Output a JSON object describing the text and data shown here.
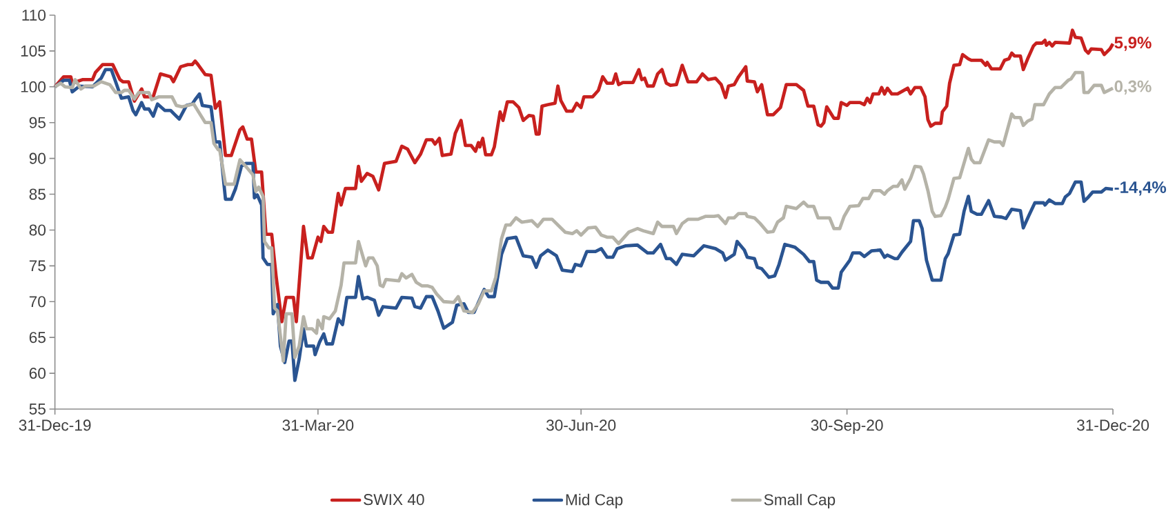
{
  "chart_data": {
    "type": "line",
    "xlim": [
      "2019-12-31",
      "2020-12-31"
    ],
    "xticks": [
      {
        "value": "2019-12-31",
        "label": "31-Dec-19"
      },
      {
        "value": "2020-03-31",
        "label": "31-Mar-20"
      },
      {
        "value": "2020-06-30",
        "label": "30-Jun-20"
      },
      {
        "value": "2020-09-30",
        "label": "30-Sep-20"
      },
      {
        "value": "2020-12-31",
        "label": "31-Dec-20"
      }
    ],
    "ylim": [
      55,
      110
    ],
    "yticks": [
      55,
      60,
      65,
      70,
      75,
      80,
      85,
      90,
      95,
      100,
      105,
      110
    ],
    "grid": false,
    "legend": "bottom",
    "marker": "none",
    "line_style": "solid",
    "series": [
      {
        "name": "SWIX 40",
        "color": "#c8201e",
        "x": [
          "2019-12-31",
          "2020-01-03",
          "2020-01-05T12:00",
          "2020-01-06",
          "2020-01-09T12:00",
          "2020-01-13",
          "2020-01-14",
          "2020-01-16T12:00",
          "2020-01-20",
          "2020-01-22T12:00",
          "2020-01-23T12:00",
          "2020-01-25T12:00",
          "2020-01-27T12:00",
          "2020-01-30",
          "2020-01-31",
          "2020-02-03",
          "2020-02-05T12:00",
          "2020-02-09",
          "2020-02-10",
          "2020-02-12T12:00",
          "2020-02-15",
          "2020-02-16T12:00",
          "2020-02-17T12:00",
          "2020-02-18T12:00",
          "2020-02-21",
          "2020-02-23",
          "2020-02-24T12:00",
          "2020-02-26",
          "2020-02-28",
          "2020-03-01",
          "2020-03-04",
          "2020-03-05",
          "2020-03-06T12:00",
          "2020-03-08",
          "2020-03-09T12:00",
          "2020-03-11T12:00",
          "2020-03-13",
          "2020-03-15",
          "2020-03-16T12:00",
          "2020-03-18T12:00",
          "2020-03-20",
          "2020-03-22T12:00",
          "2020-03-23T12:00",
          "2020-03-26",
          "2020-03-27T12:00",
          "2020-03-29",
          "2020-03-31",
          "2020-04-01",
          "2020-04-02",
          "2020-04-03T12:00",
          "2020-04-05",
          "2020-04-07",
          "2020-04-08",
          "2020-04-09T12:00",
          "2020-04-13",
          "2020-04-14",
          "2020-04-15",
          "2020-04-17",
          "2020-04-19",
          "2020-04-21",
          "2020-04-23",
          "2020-04-27",
          "2020-04-29",
          "2020-05-01",
          "2020-05-03T12:00",
          "2020-05-05T12:00",
          "2020-05-07T12:00",
          "2020-05-09T12:00",
          "2020-05-10T12:00",
          "2020-05-12",
          "2020-05-13",
          "2020-05-16",
          "2020-05-17T12:00",
          "2020-05-19T12:00",
          "2020-05-21",
          "2020-05-23",
          "2020-05-24T12:00",
          "2020-05-25T12:00",
          "2020-05-26",
          "2020-05-27",
          "2020-05-28",
          "2020-05-30",
          "2020-05-31",
          "2020-06-02",
          "2020-06-03",
          "2020-06-04T12:00",
          "2020-06-06T12:00",
          "2020-06-08T12:00",
          "2020-06-10",
          "2020-06-12",
          "2020-06-13T12:00",
          "2020-06-14T12:00",
          "2020-06-15T12:00",
          "2020-06-16T12:00",
          "2020-06-18T12:00",
          "2020-06-21",
          "2020-06-22",
          "2020-06-23",
          "2020-06-25",
          "2020-06-27",
          "2020-06-28T12:00",
          "2020-06-30",
          "2020-07-01",
          "2020-07-04",
          "2020-07-06",
          "2020-07-07T12:00",
          "2020-07-09",
          "2020-07-11",
          "2020-07-12",
          "2020-07-13",
          "2020-07-14T12:00",
          "2020-07-18",
          "2020-07-20",
          "2020-07-21",
          "2020-07-22",
          "2020-07-23",
          "2020-07-25",
          "2020-07-26T12:00",
          "2020-07-28",
          "2020-07-29T12:00",
          "2020-07-31",
          "2020-08-02",
          "2020-08-04",
          "2020-08-06",
          "2020-08-09",
          "2020-08-11",
          "2020-08-13",
          "2020-08-15T12:00",
          "2020-08-17T12:00",
          "2020-08-19",
          "2020-08-20",
          "2020-08-22",
          "2020-08-23T12:00",
          "2020-08-26",
          "2020-08-26T12:00",
          "2020-08-29",
          "2020-08-30",
          "2020-08-31T12:00",
          "2020-09-02T12:00",
          "2020-09-04T12:00",
          "2020-09-07",
          "2020-09-09",
          "2020-09-12T12:00",
          "2020-09-15",
          "2020-09-16T12:00",
          "2020-09-18T12:00",
          "2020-09-20",
          "2020-09-21",
          "2020-09-22",
          "2020-09-23",
          "2020-09-25T12:00",
          "2020-09-27",
          "2020-09-28",
          "2020-09-30",
          "2020-10-01",
          "2020-10-04T12:00",
          "2020-10-06",
          "2020-10-07",
          "2020-10-08",
          "2020-10-09",
          "2020-10-11",
          "2020-10-12",
          "2020-10-13",
          "2020-10-14",
          "2020-10-15T12:00",
          "2020-10-17T12:00",
          "2020-10-21",
          "2020-10-22",
          "2020-10-23T12:00",
          "2020-10-25T12:00",
          "2020-10-27",
          "2020-10-28",
          "2020-10-29",
          "2020-10-30T12:00",
          "2020-11-01T12:00",
          "2020-11-02",
          "2020-11-03T12:00",
          "2020-11-04T12:00",
          "2020-11-06",
          "2020-11-08",
          "2020-11-09",
          "2020-11-11",
          "2020-11-12",
          "2020-11-15T12:00",
          "2020-11-17",
          "2020-11-17T12:00",
          "2020-11-19",
          "2020-11-22",
          "2020-11-23T12:00",
          "2020-11-25",
          "2020-11-26",
          "2020-11-27",
          "2020-11-29",
          "2020-11-30",
          "2020-12-01T12:00",
          "2020-12-03T12:00",
          "2020-12-04T12:00",
          "2020-12-06T12:00",
          "2020-12-07T12:00",
          "2020-12-08",
          "2020-12-09",
          "2020-12-10",
          "2020-12-11",
          "2020-12-16",
          "2020-12-17",
          "2020-12-18",
          "2020-12-20",
          "2020-12-21T12:00",
          "2020-12-22T12:00",
          "2020-12-23T12:00",
          "2020-12-27",
          "2020-12-28",
          "2020-12-30",
          "2020-12-31"
        ],
        "values": [
          100,
          101.4,
          101.4,
          100.5,
          101,
          101,
          102,
          103.1,
          103.1,
          101,
          100.7,
          100.7,
          98,
          99.7,
          98.6,
          98.6,
          101.8,
          101.4,
          100.7,
          102.8,
          103.1,
          103.1,
          103.6,
          103.1,
          101.7,
          101.6,
          97,
          97.9,
          90.4,
          90.4,
          94,
          94.4,
          92.7,
          92.7,
          88.1,
          88.1,
          79.4,
          79.4,
          73.6,
          67.2,
          70.6,
          70.6,
          67.2,
          80.5,
          76.1,
          76.1,
          79,
          78.4,
          80.5,
          79.7,
          79.7,
          85.1,
          83.5,
          85.8,
          85.8,
          88.9,
          86.8,
          87.9,
          87.5,
          85.6,
          89.3,
          89.6,
          91.7,
          91.3,
          89.4,
          90.6,
          92.6,
          92.6,
          92,
          92.8,
          90.4,
          90.6,
          93.5,
          95.3,
          91.8,
          91.8,
          91,
          92.2,
          91.6,
          92.8,
          90.5,
          90.5,
          91.6,
          96.5,
          95.3,
          97.9,
          97.9,
          97.1,
          95.3,
          96,
          95.9,
          93.4,
          93.4,
          97.3,
          97.5,
          97.7,
          100.1,
          98.1,
          96.6,
          96.6,
          97.7,
          97.1,
          98.6,
          98.6,
          99.5,
          101.4,
          100.5,
          100.5,
          101.8,
          100.3,
          100.6,
          100.6,
          102.4,
          101,
          101.2,
          100.1,
          100.1,
          101.8,
          102.4,
          100.5,
          100.2,
          100.3,
          103,
          100.7,
          100.7,
          101.8,
          101,
          101.2,
          100.3,
          98.5,
          100.1,
          100.3,
          101.4,
          102.8,
          100.8,
          100.7,
          99.3,
          100.3,
          96.1,
          96.1,
          97.1,
          100.3,
          100.3,
          99.5,
          97.3,
          97.3,
          94.7,
          94.5,
          95,
          97.2,
          95.6,
          95.6,
          97.8,
          97.4,
          97.8,
          97.8,
          97.5,
          98.4,
          97.8,
          99,
          99,
          99.9,
          99,
          99.8,
          99,
          99,
          99.8,
          99,
          99.9,
          99.9,
          98.6,
          95.4,
          94.5,
          94.9,
          94.9,
          96.5,
          97.3,
          100.5,
          103,
          103.1,
          104.5,
          103.9,
          103.7,
          103.7,
          103,
          103.4,
          102.5,
          102.5,
          103.7,
          103.9,
          104.7,
          104.3,
          104.3,
          102.4,
          103.9,
          105.7,
          106.1,
          106.1,
          106.5,
          105.8,
          106.2,
          105.7,
          106.2,
          106.1,
          107.9,
          106.9,
          106.8,
          105.1,
          104.7,
          105.3,
          105.2,
          104.5,
          105.3,
          106
        ]
      },
      {
        "name": "Mid Cap",
        "color": "#2a5491",
        "x": [
          "2019-12-31",
          "2020-01-03",
          "2020-01-05",
          "2020-01-06",
          "2020-01-08T12:00",
          "2020-01-13",
          "2020-01-16",
          "2020-01-17T12:00",
          "2020-01-19T12:00",
          "2020-01-21",
          "2020-01-23",
          "2020-01-25T12:00",
          "2020-01-27",
          "2020-01-28",
          "2020-01-30",
          "2020-01-31",
          "2020-02-01T12:00",
          "2020-02-03",
          "2020-02-04T12:00",
          "2020-02-07",
          "2020-02-09",
          "2020-02-12",
          "2020-02-14T12:00",
          "2020-02-16T12:00",
          "2020-02-17T12:00",
          "2020-02-19",
          "2020-02-20",
          "2020-02-23",
          "2020-02-24T12:00",
          "2020-02-26",
          "2020-02-28",
          "2020-03-01",
          "2020-03-02T12:00",
          "2020-03-04T12:00",
          "2020-03-06",
          "2020-03-08T12:00",
          "2020-03-09",
          "2020-03-10",
          "2020-03-11T12:00",
          "2020-03-12",
          "2020-03-13T12:00",
          "2020-03-15",
          "2020-03-15T12:00",
          "2020-03-17",
          "2020-03-18",
          "2020-03-19T12:00",
          "2020-03-21",
          "2020-03-22",
          "2020-03-23",
          "2020-03-24T12:00",
          "2020-03-26",
          "2020-03-27",
          "2020-03-29T12:00",
          "2020-03-30",
          "2020-03-31T12:00",
          "2020-04-02",
          "2020-04-03",
          "2020-04-05",
          "2020-04-07",
          "2020-04-08T12:00",
          "2020-04-10",
          "2020-04-13",
          "2020-04-14",
          "2020-04-15T12:00",
          "2020-04-17",
          "2020-04-19T12:00",
          "2020-04-21",
          "2020-04-22T12:00",
          "2020-04-27",
          "2020-04-29",
          "2020-05-02T12:00",
          "2020-05-03T12:00",
          "2020-05-05T12:00",
          "2020-05-07T12:00",
          "2020-05-09T12:00",
          "2020-05-11T12:00",
          "2020-05-13T12:00",
          "2020-05-16T12:00",
          "2020-05-18",
          "2020-05-20T12:00",
          "2020-05-22",
          "2020-05-24",
          "2020-05-27T12:00",
          "2020-05-29",
          "2020-05-31",
          "2020-06-02T12:00",
          "2020-06-04T12:00",
          "2020-06-07T12:00",
          "2020-06-10",
          "2020-06-13",
          "2020-06-14T12:00",
          "2020-06-16",
          "2020-06-18T12:00",
          "2020-06-21T12:00",
          "2020-06-23T12:00",
          "2020-06-27",
          "2020-06-28",
          "2020-06-30",
          "2020-07-02",
          "2020-07-05",
          "2020-07-07",
          "2020-07-09",
          "2020-07-11",
          "2020-07-12T12:00",
          "2020-07-15T12:00",
          "2020-07-19T12:00",
          "2020-07-23",
          "2020-07-25",
          "2020-07-27T12:00",
          "2020-07-29T12:00",
          "2020-07-31",
          "2020-08-02",
          "2020-08-04",
          "2020-08-08",
          "2020-08-11T12:00",
          "2020-08-15T12:00",
          "2020-08-18",
          "2020-08-19",
          "2020-08-22",
          "2020-08-23",
          "2020-08-25T12:00",
          "2020-08-26T12:00",
          "2020-08-29",
          "2020-08-30",
          "2020-08-31T12:00",
          "2020-09-03",
          "2020-09-05",
          "2020-09-06T12:00",
          "2020-09-08T12:00",
          "2020-09-12",
          "2020-09-15",
          "2020-09-17",
          "2020-09-18T12:00",
          "2020-09-19T12:00",
          "2020-09-21",
          "2020-09-23T12:00",
          "2020-09-25",
          "2020-09-27",
          "2020-09-28",
          "2020-10-01",
          "2020-10-02",
          "2020-10-04T12:00",
          "2020-10-06",
          "2020-10-08T12:00",
          "2020-10-11T12:00",
          "2020-10-13",
          "2020-10-14",
          "2020-10-16T12:00",
          "2020-10-17T12:00",
          "2020-10-19",
          "2020-10-22",
          "2020-10-23",
          "2020-10-25",
          "2020-10-26",
          "2020-10-27T12:00",
          "2020-10-29T12:00",
          "2020-11-01T12:00",
          "2020-11-03",
          "2020-11-04",
          "2020-11-06",
          "2020-11-08",
          "2020-11-09T12:00",
          "2020-11-11",
          "2020-11-12",
          "2020-11-14",
          "2020-11-15T12:00",
          "2020-11-18",
          "2020-11-20",
          "2020-11-22T12:00",
          "2020-11-24",
          "2020-11-26",
          "2020-11-29",
          "2020-11-30",
          "2020-12-02",
          "2020-12-04",
          "2020-12-07",
          "2020-12-07T12:00",
          "2020-12-09",
          "2020-12-11",
          "2020-12-13T12:00",
          "2020-12-14T12:00",
          "2020-12-16",
          "2020-12-18",
          "2020-12-20",
          "2020-12-21",
          "2020-12-22T12:00",
          "2020-12-24",
          "2020-12-27",
          "2020-12-28T12:00",
          "2020-12-31"
        ],
        "values": [
          100,
          100.9,
          100.9,
          99.3,
          100.1,
          100,
          101.2,
          102.4,
          102.4,
          100.7,
          98.4,
          98.6,
          96.7,
          96.1,
          97.8,
          96.9,
          96.9,
          95.9,
          97.6,
          96.7,
          96.7,
          95.5,
          97.4,
          97.6,
          98.2,
          99,
          97.4,
          97.2,
          92.3,
          92.3,
          84.3,
          84.3,
          85.8,
          88.9,
          89.3,
          89.3,
          84.5,
          84.9,
          83.5,
          76.1,
          75.2,
          75.2,
          68.3,
          69.6,
          63.8,
          61.5,
          64.5,
          64.5,
          59,
          62,
          66.2,
          63.8,
          63.8,
          62.6,
          64.3,
          65.5,
          64.1,
          64.1,
          67.6,
          66.8,
          70.6,
          70.6,
          73.5,
          70.4,
          70.6,
          70.2,
          68.1,
          69.3,
          69.1,
          70.6,
          70.5,
          69.3,
          69.1,
          70.7,
          70.7,
          68.7,
          66.3,
          67.1,
          69.5,
          69.7,
          68.5,
          68.5,
          71.7,
          70.7,
          70.7,
          76.6,
          78.8,
          79,
          76.4,
          76.2,
          74.8,
          76.4,
          77.2,
          76.4,
          74.4,
          74.2,
          75.2,
          75,
          77,
          77,
          77.4,
          76.2,
          76.2,
          77.4,
          77.8,
          77.9,
          76.8,
          76.8,
          78,
          76,
          76,
          75.2,
          76.6,
          76.4,
          77.8,
          77.4,
          76.8,
          75.8,
          76.6,
          78.4,
          77.2,
          76.2,
          76,
          74.8,
          74.6,
          73.4,
          73.6,
          75.2,
          78,
          77.6,
          76.6,
          75.6,
          75.6,
          73,
          72.7,
          72.7,
          71.9,
          71.9,
          74.1,
          75.8,
          76.8,
          76.8,
          76.3,
          77.1,
          77.2,
          76.2,
          76.5,
          76,
          76,
          76.9,
          78.4,
          81.3,
          81.3,
          80.2,
          75.8,
          73,
          73,
          76,
          76.7,
          79.3,
          79.4,
          82.6,
          84.7,
          82.6,
          82.2,
          82.2,
          84.1,
          81.9,
          81.8,
          81.6,
          82.9,
          82.7,
          80.3,
          82.1,
          83.8,
          83.8,
          83.5,
          84.2,
          83.7,
          83.7,
          84.6,
          85.1,
          86.7,
          86.7,
          84,
          84.6,
          85.3,
          85.3,
          85.8,
          85.7
        ]
      },
      {
        "name": "Small Cap",
        "color": "#b5b3a8",
        "x": [
          "2019-12-31",
          "2020-01-02",
          "2020-01-03T12:00",
          "2020-01-06",
          "2020-01-07",
          "2020-01-09",
          "2020-01-10T12:00",
          "2020-01-13T12:00",
          "2020-01-16",
          "2020-01-19",
          "2020-01-21",
          "2020-01-23",
          "2020-01-24",
          "2020-01-25T12:00",
          "2020-01-27T12:00",
          "2020-01-29",
          "2020-02-01T12:00",
          "2020-02-02T12:00",
          "2020-02-05",
          "2020-02-09T12:00",
          "2020-02-11",
          "2020-02-13",
          "2020-02-17",
          "2020-02-19",
          "2020-02-21",
          "2020-02-23",
          "2020-02-24",
          "2020-02-25T12:00",
          "2020-02-26",
          "2020-02-28",
          "2020-03-02",
          "2020-03-04",
          "2020-03-06",
          "2020-03-08T12:00",
          "2020-03-09T12:00",
          "2020-03-10T12:00",
          "2020-03-12",
          "2020-03-12T12:00",
          "2020-03-14",
          "2020-03-15",
          "2020-03-16",
          "2020-03-17",
          "2020-03-19",
          "2020-03-20",
          "2020-03-22",
          "2020-03-23",
          "2020-03-24T12:00",
          "2020-03-26",
          "2020-03-27",
          "2020-03-29",
          "2020-03-30T12:00",
          "2020-03-31",
          "2020-04-01T12:00",
          "2020-04-02",
          "2020-04-04",
          "2020-04-06",
          "2020-04-08",
          "2020-04-09",
          "2020-04-13",
          "2020-04-14",
          "2020-04-16T12:00",
          "2020-04-17T12:00",
          "2020-04-19",
          "2020-04-20T12:00",
          "2020-04-21T12:00",
          "2020-04-22T12:00",
          "2020-04-23T12:00",
          "2020-04-28",
          "2020-04-29",
          "2020-04-30T12:00",
          "2020-05-02T12:00",
          "2020-05-04",
          "2020-05-06",
          "2020-05-08",
          "2020-05-09T12:00",
          "2020-05-11",
          "2020-05-13T12:00",
          "2020-05-17",
          "2020-05-18T12:00",
          "2020-05-20T12:00",
          "2020-05-23T12:00",
          "2020-05-25T12:00",
          "2020-05-27T12:00",
          "2020-05-30",
          "2020-05-31T12:00",
          "2020-06-02T12:00",
          "2020-06-04",
          "2020-06-05T12:00",
          "2020-06-07T12:00",
          "2020-06-09T12:00",
          "2020-06-13",
          "2020-06-15",
          "2020-06-17",
          "2020-06-20",
          "2020-06-22T12:00",
          "2020-06-24T12:00",
          "2020-06-27",
          "2020-06-28T12:00",
          "2020-06-30",
          "2020-07-02T12:00",
          "2020-07-05",
          "2020-07-07",
          "2020-07-09",
          "2020-07-11",
          "2020-07-13",
          "2020-07-16T12:00",
          "2020-07-19T12:00",
          "2020-07-21T12:00",
          "2020-07-25",
          "2020-07-26T12:00",
          "2020-07-28",
          "2020-08-01",
          "2020-08-02",
          "2020-08-04",
          "2020-08-06",
          "2020-08-09T12:00",
          "2020-08-12",
          "2020-08-15",
          "2020-08-16T12:00",
          "2020-08-19",
          "2020-08-20",
          "2020-08-22",
          "2020-08-23T12:00",
          "2020-08-26",
          "2020-08-26T12:00",
          "2020-08-29",
          "2020-08-31",
          "2020-09-02T12:00",
          "2020-09-04T12:00",
          "2020-09-06",
          "2020-09-08",
          "2020-09-09",
          "2020-09-12T12:00",
          "2020-09-15",
          "2020-09-16T12:00",
          "2020-09-18T12:00",
          "2020-09-20",
          "2020-09-22",
          "2020-09-24",
          "2020-09-25T12:00",
          "2020-09-27T12:00",
          "2020-09-29",
          "2020-10-01",
          "2020-10-04",
          "2020-10-05T12:00",
          "2020-10-07T12:00",
          "2020-10-09",
          "2020-10-11T12:00",
          "2020-10-13",
          "2020-10-14",
          "2020-10-16",
          "2020-10-17T12:00",
          "2020-10-19",
          "2020-10-20",
          "2020-10-22",
          "2020-10-23T12:00",
          "2020-10-25T12:00",
          "2020-10-26T12:00",
          "2020-10-28",
          "2020-10-29T12:00",
          "2020-10-30T12:00",
          "2020-11-01T12:00",
          "2020-11-03",
          "2020-11-04",
          "2020-11-06",
          "2020-11-08",
          "2020-11-11",
          "2020-11-12",
          "2020-11-13",
          "2020-11-15",
          "2020-11-18",
          "2020-11-20",
          "2020-11-22",
          "2020-11-23",
          "2020-11-26",
          "2020-11-27",
          "2020-11-29",
          "2020-11-30",
          "2020-12-01T12:00",
          "2020-12-03",
          "2020-12-04",
          "2020-12-07",
          "2020-12-09",
          "2020-12-11",
          "2020-12-13",
          "2020-12-15T12:00",
          "2020-12-16T12:00",
          "2020-12-18",
          "2020-12-20T12:00",
          "2020-12-21",
          "2020-12-22T12:00",
          "2020-12-24T12:00",
          "2020-12-27",
          "2020-12-28",
          "2020-12-31"
        ],
        "values": [
          100,
          100.5,
          100,
          99.9,
          101,
          99.7,
          100.1,
          100.1,
          100.7,
          100.3,
          99.2,
          99.2,
          99.5,
          99.5,
          98.3,
          99.2,
          99.2,
          98.2,
          98.6,
          98.6,
          97.4,
          97.2,
          97.6,
          96.3,
          95,
          95,
          92.1,
          91.2,
          91.2,
          86.4,
          86.4,
          89.8,
          88.9,
          87.7,
          85.4,
          86,
          84.7,
          78.4,
          77.5,
          77.5,
          69.1,
          68.7,
          61.7,
          68.3,
          68.3,
          62.2,
          63.8,
          67.9,
          66.2,
          66.2,
          65.6,
          67.4,
          66.2,
          67.9,
          67.6,
          68.7,
          72.3,
          75.4,
          75.4,
          78.4,
          75,
          76.1,
          76.1,
          75,
          72.3,
          72.1,
          73.1,
          72.9,
          73.9,
          73.3,
          73.8,
          72.7,
          72.2,
          72.2,
          72,
          71.1,
          70,
          69.9,
          70.7,
          68.7,
          68.5,
          69.7,
          71.5,
          71.5,
          73.4,
          78.8,
          80.7,
          80.7,
          81.7,
          81.1,
          81.3,
          80.5,
          81.5,
          81.5,
          80.5,
          79.7,
          79.5,
          79.9,
          79.3,
          80.3,
          80.4,
          79.3,
          79,
          79,
          78.1,
          79.7,
          80.2,
          79.9,
          79.5,
          81.1,
          80.5,
          80.5,
          79.5,
          80.9,
          81.5,
          81.5,
          81.9,
          81.9,
          82,
          80.9,
          81.7,
          81.7,
          82.3,
          82.3,
          81.9,
          81.7,
          80.9,
          79.7,
          79.8,
          81.1,
          81.7,
          83.3,
          83,
          83.9,
          83.3,
          83.3,
          81.7,
          81.7,
          81.7,
          80.2,
          80.2,
          81.9,
          83.3,
          83.4,
          84.4,
          84.4,
          85.5,
          85.5,
          85,
          85.5,
          86.1,
          86.1,
          87,
          85.7,
          87.2,
          88.9,
          88.8,
          87.8,
          85.5,
          82.6,
          81.9,
          82,
          83.2,
          84.3,
          87.2,
          87.3,
          91.4,
          89.9,
          89.4,
          89.4,
          92.6,
          92.3,
          92.3,
          91.8,
          96.2,
          95.7,
          95.7,
          94.6,
          95.2,
          95.5,
          97.5,
          97.5,
          99,
          99.9,
          99.9,
          100.9,
          101.1,
          102,
          102,
          99.2,
          99.2,
          100.2,
          100.2,
          99.2,
          99.8
        ]
      }
    ],
    "annotations": [
      {
        "text": "5,9%",
        "x": "2020-12-31",
        "y": 106.0
      },
      {
        "text": "-14,4%",
        "x": "2020-12-31",
        "y": 85.8
      },
      {
        "text": "0,3%",
        "x": "2020-12-31",
        "y": 99.9
      }
    ]
  }
}
